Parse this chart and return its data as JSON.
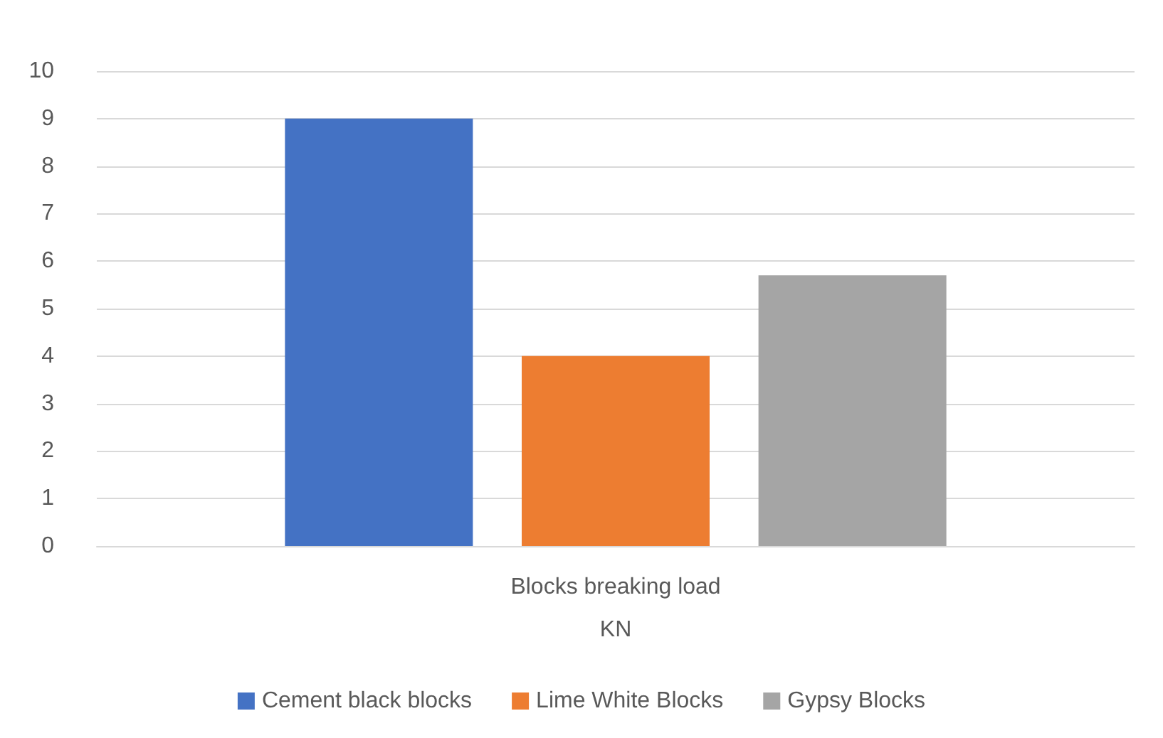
{
  "chart_data": {
    "type": "bar",
    "categories": [
      "Blocks breaking load\nKN"
    ],
    "series": [
      {
        "name": "Cement black blocks",
        "color": "#4472c4",
        "values": [
          9
        ]
      },
      {
        "name": "Lime White Blocks",
        "color": "#ed7d31",
        "values": [
          4
        ]
      },
      {
        "name": "Gypsy Blocks",
        "color": "#a5a5a5",
        "values": [
          5.7
        ]
      }
    ],
    "ylim": [
      0,
      10
    ],
    "yticks": [
      0,
      1,
      2,
      3,
      4,
      5,
      6,
      7,
      8,
      9,
      10
    ],
    "grid": "y",
    "legend": "bottom"
  }
}
